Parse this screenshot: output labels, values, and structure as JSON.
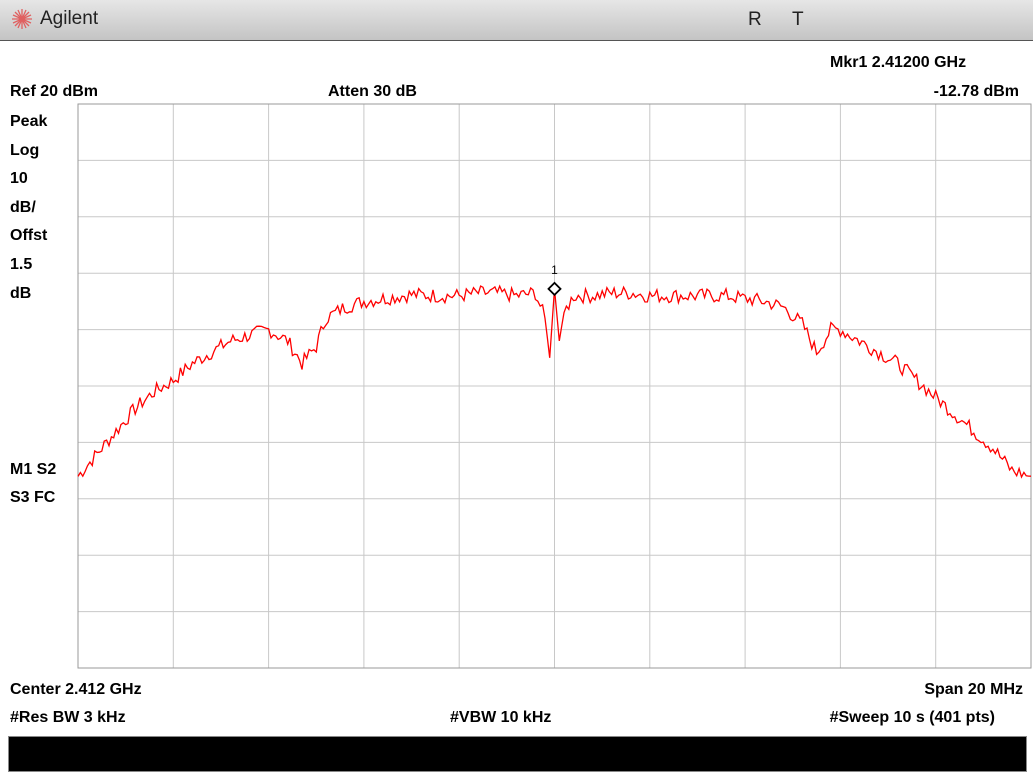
{
  "header": {
    "brand": "Agilent",
    "status_r": "R",
    "status_t": "T"
  },
  "labels": {
    "marker_readout": "Mkr1  2.41200 GHz",
    "marker_level": "-12.78 dBm",
    "ref_level": "Ref 20 dBm",
    "attenuation": "Atten 30 dB",
    "detector": [
      "Peak",
      "Log",
      "10",
      "dB/",
      "Offst",
      "1.5",
      "dB"
    ],
    "annotations": [
      "M1  S2",
      "S3  FC"
    ],
    "center": "Center 2.412 GHz",
    "span": "Span 20 MHz",
    "res_bw": "#Res BW 3 kHz",
    "vbw": "#VBW 10 kHz",
    "sweep": "#Sweep 10 s (401 pts)",
    "marker_number": "1"
  },
  "colors": {
    "trace": "#ff0000",
    "grid": "#c8c8c8",
    "marker": "#000000"
  },
  "chart_data": {
    "type": "line",
    "x_unit": "MHz offset from 2.412 GHz",
    "y_unit": "dBm",
    "xlim": [
      -10,
      10
    ],
    "ylim": [
      -80,
      20
    ],
    "grid": true,
    "x_divisions": 10,
    "y_divisions": 10,
    "marker": {
      "x": 0,
      "y": -12.78
    },
    "series": [
      {
        "x": [
          -10,
          -9.6,
          -9.2,
          -8.8,
          -8.4,
          -8.0,
          -7.6,
          -7.2,
          -6.8,
          -6.4,
          -6.0,
          -5.6,
          -5.3,
          -5.0,
          -4.8,
          -4.4,
          -4.0,
          -3.6,
          -3.2,
          -3.0,
          -2.4,
          -2.0,
          -1.6,
          -1.2,
          -0.8,
          -0.4,
          -0.2,
          -0.1,
          0,
          0.1,
          0.2,
          0.4,
          0.8,
          1.2,
          1.6,
          2.0,
          2.4,
          2.8,
          3.2,
          3.6,
          4.0,
          4.4,
          4.8,
          5.2,
          5.5,
          5.8,
          6.0,
          6.4,
          6.8,
          7.2,
          7.6,
          8.0,
          8.4,
          8.8,
          9.2,
          9.6,
          10
        ],
        "y": [
          -46,
          -42,
          -38,
          -34,
          -31,
          -29,
          -26,
          -24,
          -22,
          -21,
          -20,
          -22,
          -26,
          -23,
          -18,
          -16,
          -15,
          -14.5,
          -14,
          -13.8,
          -14,
          -14,
          -13.5,
          -13.5,
          -14,
          -13.5,
          -18,
          -25,
          -12.78,
          -22,
          -17,
          -14,
          -14,
          -13.5,
          -13.5,
          -14,
          -14,
          -14,
          -14,
          -14,
          -14.5,
          -15,
          -16,
          -19,
          -24,
          -20,
          -20,
          -22,
          -24,
          -26,
          -29,
          -32,
          -35,
          -38,
          -41,
          -45,
          -46
        ]
      }
    ]
  }
}
